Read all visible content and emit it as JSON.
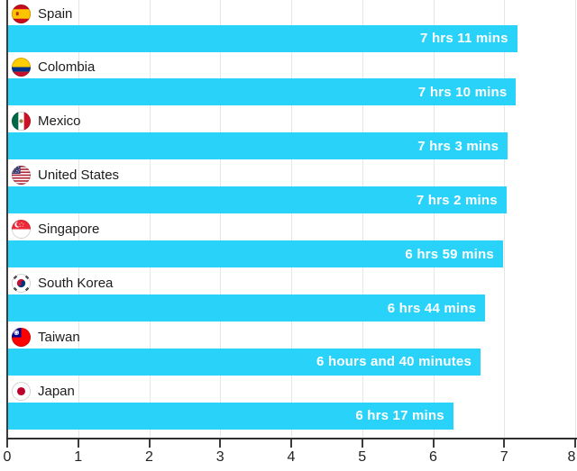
{
  "chart_data": {
    "type": "bar",
    "orientation": "horizontal",
    "title": "",
    "xlabel": "",
    "ylabel": "",
    "unit": "hours of sleep",
    "xlim": [
      0,
      8
    ],
    "x_ticks": [
      "0",
      "1",
      "2",
      "3",
      "4",
      "5",
      "6",
      "7",
      "8"
    ],
    "grid": "vertical",
    "legend": "none",
    "bar_color": "#29d2f8",
    "value_label_color": "#ffffff",
    "categories": [
      "Spain",
      "Colombia",
      "Mexico",
      "United States",
      "Singapore",
      "South Korea",
      "Taiwan",
      "Japan"
    ],
    "values": [
      7.183,
      7.167,
      7.05,
      7.033,
      6.983,
      6.733,
      6.667,
      6.283
    ],
    "bar_labels": [
      "7 hrs 11 mins",
      "7 hrs 10 mins",
      "7 hrs 3 mins",
      "7 hrs 2 mins",
      "6 hrs 59 mins",
      "6 hrs 44 mins",
      "6 hours and 40 minutes",
      "6 hrs 17 mins"
    ],
    "flag_icons": [
      "spain-flag-icon",
      "colombia-flag-icon",
      "mexico-flag-icon",
      "united-states-flag-icon",
      "singapore-flag-icon",
      "south-korea-flag-icon",
      "taiwan-flag-icon",
      "japan-flag-icon"
    ]
  }
}
